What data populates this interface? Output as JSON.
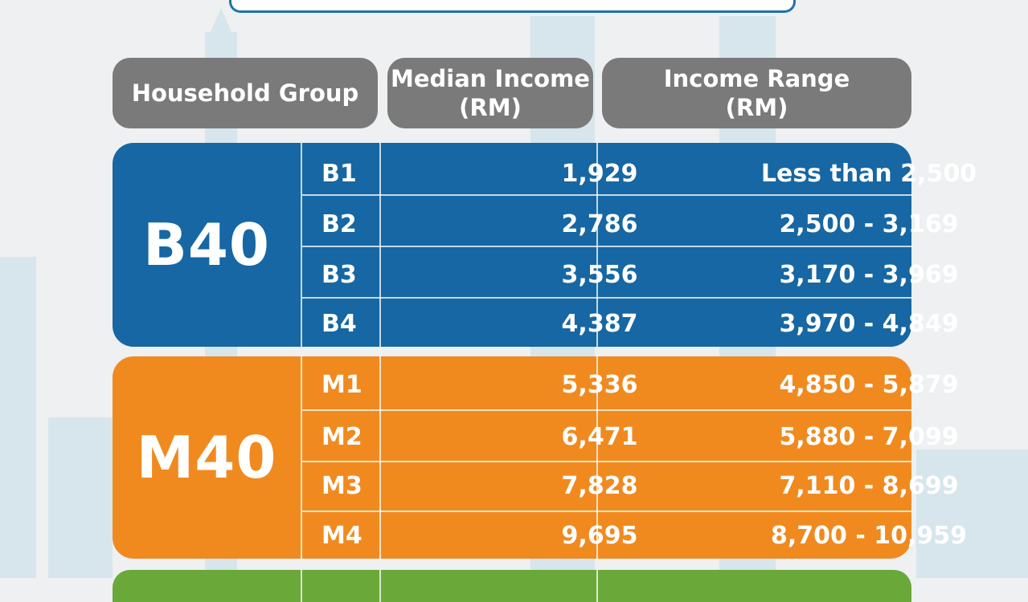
{
  "header": {
    "group": "Household Group",
    "median": [
      "Median Income",
      "(RM)"
    ],
    "range": [
      "Income Range",
      "(RM)"
    ]
  },
  "groups": [
    {
      "name": "B40",
      "color": "#1667a3",
      "rows": [
        {
          "code": "B1",
          "median": "1,929",
          "range": "Less than  2,500"
        },
        {
          "code": "B2",
          "median": "2,786",
          "range": "2,500 - 3,169"
        },
        {
          "code": "B3",
          "median": "3,556",
          "range": "3,170 - 3,969"
        },
        {
          "code": "B4",
          "median": "4,387",
          "range": "3,970 - 4,849"
        }
      ]
    },
    {
      "name": "M40",
      "color": "#f08a1f",
      "rows": [
        {
          "code": "M1",
          "median": "5,336",
          "range": "4,850 - 5,879"
        },
        {
          "code": "M2",
          "median": "6,471",
          "range": "5,880 - 7,099"
        },
        {
          "code": "M3",
          "median": "7,828",
          "range": "7,110 - 8,699"
        },
        {
          "code": "M4",
          "median": "9,695",
          "range": "8,700 - 10,959"
        }
      ]
    }
  ],
  "next_group_color": "#6aa83a"
}
